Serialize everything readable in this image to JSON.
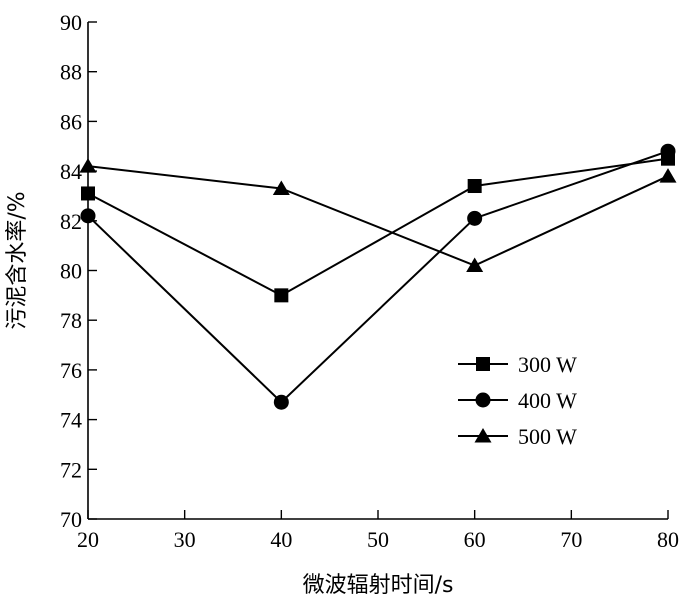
{
  "chart_data": {
    "type": "line",
    "xlabel": "微波辐射时间/s",
    "ylabel": "污泥含水率/%",
    "xlim": [
      20,
      80
    ],
    "ylim": [
      70,
      90
    ],
    "xticks": [
      20,
      30,
      40,
      50,
      60,
      70,
      80
    ],
    "yticks": [
      70,
      72,
      74,
      76,
      78,
      80,
      82,
      84,
      86,
      88,
      90
    ],
    "x": [
      20,
      40,
      60,
      80
    ],
    "grid": false,
    "legend_position": "center-right",
    "series": [
      {
        "name": "300 W",
        "marker": "square",
        "values": [
          83.1,
          79.0,
          83.4,
          84.5
        ]
      },
      {
        "name": "400 W",
        "marker": "circle",
        "values": [
          82.2,
          74.7,
          82.1,
          84.8
        ]
      },
      {
        "name": "500 W",
        "marker": "triangle",
        "values": [
          84.2,
          83.3,
          80.2,
          83.8
        ]
      }
    ]
  }
}
